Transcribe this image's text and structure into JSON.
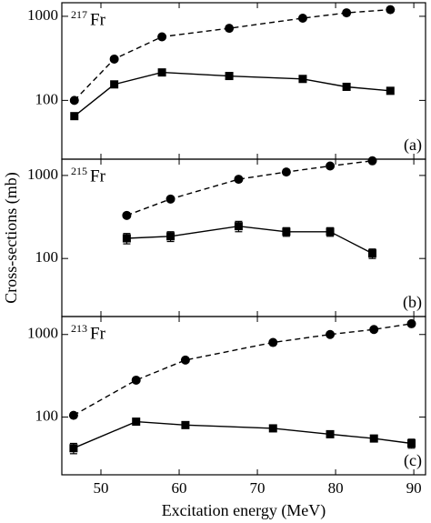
{
  "chart_data": [
    {
      "type": "line",
      "log_y": true,
      "panel_label": "(a)",
      "label_mass": "217",
      "label_element": "Fr",
      "xlim": [
        45,
        91.5
      ],
      "xticks": [
        50,
        60,
        70,
        80,
        90
      ],
      "ylim": [
        20,
        1450
      ],
      "yticks": [
        100,
        1000
      ],
      "series": [
        {
          "color": "#000000",
          "marker": "circle",
          "dash": true,
          "x": [
            46.6,
            51.7,
            57.8,
            66.4,
            75.8,
            81.4,
            87.0
          ],
          "values": [
            100,
            310,
            570,
            720,
            950,
            1100,
            1200
          ]
        },
        {
          "color": "#000000",
          "marker": "square",
          "dash": false,
          "x": [
            46.6,
            51.7,
            57.8,
            66.4,
            75.8,
            81.4,
            87.0
          ],
          "values": [
            65,
            155,
            215,
            195,
            180,
            145,
            130
          ]
        }
      ]
    },
    {
      "type": "line",
      "log_y": true,
      "panel_label": "(b)",
      "label_mass": "215",
      "label_element": "Fr",
      "ylabel": "Cross-sections (mb)",
      "xlim": [
        45,
        91.5
      ],
      "xticks": [
        50,
        60,
        70,
        80,
        90
      ],
      "ylim": [
        20,
        1570
      ],
      "yticks": [
        100,
        1000
      ],
      "series": [
        {
          "color": "#000000",
          "marker": "circle",
          "dash": true,
          "x": [
            53.3,
            58.9,
            67.6,
            73.7,
            79.3,
            84.7
          ],
          "values": [
            330,
            520,
            900,
            1100,
            1300,
            1500
          ]
        },
        {
          "color": "#000000",
          "marker": "square",
          "dash": false,
          "x": [
            53.3,
            58.9,
            67.6,
            73.7,
            79.3,
            84.7
          ],
          "values": [
            175,
            185,
            245,
            210,
            210,
            115
          ],
          "errors": [
            25,
            25,
            35,
            25,
            25,
            15
          ]
        }
      ]
    },
    {
      "type": "line",
      "log_y": true,
      "panel_label": "(c)",
      "label_mass": "213",
      "label_element": "Fr",
      "xlabel": "Excitation energy (MeV)",
      "xlim": [
        45,
        91.5
      ],
      "xticks": [
        50,
        60,
        70,
        80,
        90
      ],
      "ylim": [
        20,
        1650
      ],
      "yticks": [
        100,
        1000
      ],
      "series": [
        {
          "color": "#000000",
          "marker": "circle",
          "dash": true,
          "x": [
            46.5,
            54.5,
            60.8,
            72.0,
            79.3,
            84.9,
            89.7
          ],
          "values": [
            105,
            280,
            490,
            800,
            1000,
            1150,
            1350
          ]
        },
        {
          "color": "#000000",
          "marker": "square",
          "dash": false,
          "x": [
            46.5,
            54.5,
            60.8,
            72.0,
            79.3,
            84.9,
            89.7
          ],
          "values": [
            42,
            88,
            80,
            73,
            62,
            55,
            48
          ],
          "errors": [
            6,
            null,
            null,
            null,
            null,
            null,
            6
          ]
        }
      ]
    }
  ]
}
